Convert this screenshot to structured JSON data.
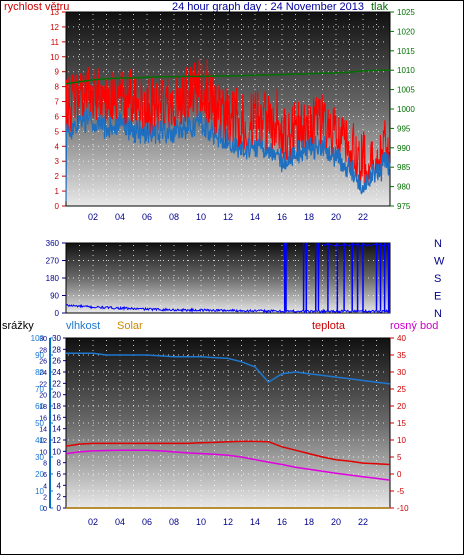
{
  "header": {
    "wind_label": "rychlost větru",
    "title": "24 hour graph day : 24 November 2013",
    "pressure_label": "tlak"
  },
  "lower_header": {
    "rain_label": "srážky",
    "humidity_label": "vlhkost",
    "solar_label": "Solar",
    "temp_label": "teplota",
    "dew_label": "rosný bod"
  },
  "colors": {
    "wind": "#ff0000",
    "gust": "#1e6fbf",
    "pressure": "#007000",
    "direction": "#0000ff",
    "humidity": "#1e78d0",
    "temperature": "#e00000",
    "dewpoint": "#e000e0",
    "rain": "#0050c8",
    "solar": "#cc8800",
    "title": "#00009c",
    "left_axis": "#cc0000",
    "right_axis_top": "#007000",
    "right_axis_bottom": "#cc0000",
    "compass": "#00008b",
    "rain_axis": "#0070c0"
  },
  "chart_data": [
    {
      "type": "line",
      "title": "24 hour graph day : 24 November 2013",
      "x_ticks": [
        "02",
        "04",
        "06",
        "08",
        "10",
        "12",
        "14",
        "16",
        "18",
        "20",
        "22"
      ],
      "y_left": {
        "label": "rychlost větru",
        "range": [
          0,
          13
        ],
        "ticks": [
          0,
          1,
          2,
          3,
          4,
          5,
          6,
          7,
          8,
          9,
          10,
          11,
          12,
          13
        ]
      },
      "y_right": {
        "label": "tlak",
        "range": [
          975,
          1025
        ],
        "ticks": [
          975,
          980,
          985,
          990,
          995,
          1000,
          1005,
          1010,
          1015,
          1020,
          1025
        ]
      },
      "x_hours": [
        0,
        1,
        2,
        3,
        4,
        5,
        6,
        7,
        8,
        9,
        10,
        11,
        12,
        13,
        14,
        15,
        16,
        17,
        18,
        19,
        20,
        21,
        22,
        23,
        24
      ],
      "series": [
        {
          "axis": "left",
          "values": [
            6.8,
            7.2,
            7.5,
            7.0,
            7.6,
            6.8,
            6.5,
            7.0,
            6.8,
            7.2,
            8.0,
            6.5,
            6.0,
            5.5,
            5.8,
            5.6,
            4.5,
            5.0,
            5.2,
            5.5,
            4.6,
            3.8,
            3.2,
            3.0,
            3.8
          ]
        },
        {
          "axis": "left",
          "values": [
            5.0,
            5.6,
            5.8,
            5.2,
            5.5,
            5.0,
            4.8,
            5.0,
            4.9,
            5.3,
            5.6,
            4.8,
            4.5,
            3.8,
            4.0,
            4.0,
            3.0,
            3.6,
            3.8,
            4.0,
            3.2,
            2.6,
            1.5,
            2.4,
            3.2
          ]
        },
        {
          "name": "tlak",
          "axis": "right",
          "values": [
            1006.5,
            1007.0,
            1007.5,
            1007.8,
            1008.0,
            1008.0,
            1008.2,
            1008.3,
            1008.3,
            1008.4,
            1008.4,
            1008.5,
            1008.5,
            1008.6,
            1008.7,
            1008.8,
            1008.9,
            1009.0,
            1009.1,
            1009.2,
            1009.3,
            1009.5,
            1009.8,
            1010.0,
            1010.0
          ]
        }
      ]
    },
    {
      "type": "line",
      "x_ticks": [],
      "y_left": {
        "range": [
          0,
          360
        ],
        "ticks": [
          0,
          90,
          180,
          270,
          360
        ]
      },
      "y_right_compass": [
        "N",
        "W",
        "S",
        "E",
        "N"
      ],
      "series": [
        {
          "axis": "left",
          "base_values": [
            40,
            35,
            30,
            28,
            25,
            22,
            20,
            18,
            16,
            15,
            15,
            14,
            13,
            12,
            11,
            10,
            9,
            9,
            9,
            9,
            9,
            9,
            9,
            9,
            9
          ],
          "spikes_to_360_hours": [
            16.2,
            16.3,
            17.6,
            17.8,
            18.5,
            18.7,
            19.4,
            20.1,
            20.6,
            21.2,
            21.6,
            22.0,
            23.0,
            23.3,
            23.6,
            23.9
          ]
        }
      ]
    },
    {
      "type": "line",
      "x_ticks": [
        "02",
        "04",
        "06",
        "08",
        "10",
        "12",
        "14",
        "16",
        "18",
        "20",
        "22"
      ],
      "y_left_humidity": {
        "label": "vlhkost",
        "range": [
          0,
          100
        ],
        "ticks": [
          0,
          10,
          20,
          30,
          40,
          50,
          60,
          70,
          80,
          90,
          100
        ]
      },
      "y_left_solar": {
        "label": "Solar",
        "range": [
          0,
          30
        ],
        "ticks": [
          0,
          2,
          4,
          6,
          8,
          10,
          12,
          14,
          16,
          18,
          20,
          22,
          24,
          26,
          28,
          30
        ]
      },
      "y_left_rain": {
        "label": "srážky",
        "range": [
          0,
          30
        ],
        "ticks": [
          0,
          2,
          4,
          6,
          8,
          10,
          12,
          14,
          16,
          18,
          20,
          22,
          24,
          26,
          28,
          30
        ]
      },
      "y_right": {
        "label": "teplota / rosný bod",
        "range": [
          -10,
          40
        ],
        "ticks": [
          -10,
          -5,
          0,
          5,
          10,
          15,
          20,
          25,
          30,
          35,
          40
        ]
      },
      "x_hours": [
        0,
        1,
        2,
        3,
        4,
        5,
        6,
        7,
        8,
        9,
        10,
        11,
        12,
        13,
        14,
        15,
        16,
        17,
        18,
        19,
        20,
        21,
        22,
        23,
        24
      ],
      "series": [
        {
          "name": "vlhkost",
          "axis": "humidity",
          "values": [
            91,
            91,
            91,
            90,
            90,
            90,
            90,
            89.5,
            89,
            89,
            89,
            88.5,
            88,
            86,
            83,
            74,
            79,
            80,
            79,
            78,
            77,
            76,
            75,
            74,
            73
          ]
        },
        {
          "name": "teplota",
          "axis": "right",
          "values": [
            8.2,
            8.8,
            9.0,
            9.0,
            9.0,
            9.0,
            9.0,
            9.0,
            9.0,
            9.0,
            9.2,
            9.3,
            9.5,
            9.6,
            9.6,
            9.5,
            8.0,
            7.0,
            6.0,
            5.0,
            4.2,
            3.8,
            3.2,
            3.0,
            2.8
          ]
        },
        {
          "name": "rosný bod",
          "axis": "right",
          "values": [
            6.0,
            6.5,
            6.8,
            6.9,
            7.0,
            7.0,
            7.0,
            6.8,
            6.5,
            6.2,
            6.0,
            5.8,
            5.5,
            5.0,
            4.2,
            3.5,
            2.8,
            2.0,
            1.4,
            0.8,
            0.2,
            -0.3,
            -0.8,
            -1.3,
            -1.8
          ]
        },
        {
          "name": "srážky",
          "axis": "rain",
          "values": [
            0,
            0,
            0,
            0,
            0,
            0,
            0,
            0,
            0,
            0,
            0,
            0,
            0,
            0,
            0,
            0,
            0,
            0,
            0,
            0,
            0,
            0,
            0,
            0,
            0
          ]
        },
        {
          "name": "Solar",
          "axis": "solar",
          "values": [
            0,
            0,
            0,
            0,
            0,
            0,
            0,
            0,
            0,
            0,
            0,
            0,
            0,
            0,
            0,
            0,
            0,
            0,
            0,
            0,
            0,
            0,
            0,
            0,
            0
          ]
        }
      ]
    }
  ]
}
